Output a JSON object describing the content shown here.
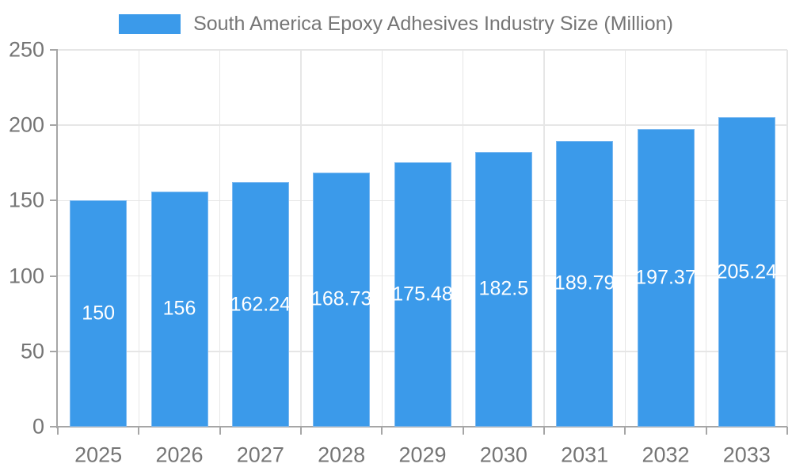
{
  "legend": {
    "label": "South America Epoxy Adhesives Industry Size (Million)"
  },
  "chart_data": {
    "type": "bar",
    "title": "South America Epoxy Adhesives Industry Size (Million)",
    "categories": [
      "2025",
      "2026",
      "2027",
      "2028",
      "2029",
      "2030",
      "2031",
      "2032",
      "2033"
    ],
    "values": [
      150,
      156,
      162.24,
      168.73,
      175.48,
      182.5,
      189.79,
      197.37,
      205.24
    ],
    "value_labels": [
      "150",
      "156",
      "162.24",
      "168.73",
      "175.48",
      "182.5",
      "189.79",
      "197.37",
      "205.24"
    ],
    "xlabel": "",
    "ylabel": "",
    "ylim": [
      0,
      250
    ],
    "yticks": [
      0,
      50,
      100,
      150,
      200,
      250
    ],
    "grid": true,
    "legend_position": "top",
    "colors": {
      "bar_fill": "#3b9aea",
      "bar_border": "#7cb9f1",
      "axis_line": "#a6a6a6",
      "gridline": "#e6e6e6",
      "tick_text": "#757575",
      "value_text": "#ffffff",
      "legend_text": "#757575",
      "background": "#ffffff"
    }
  }
}
